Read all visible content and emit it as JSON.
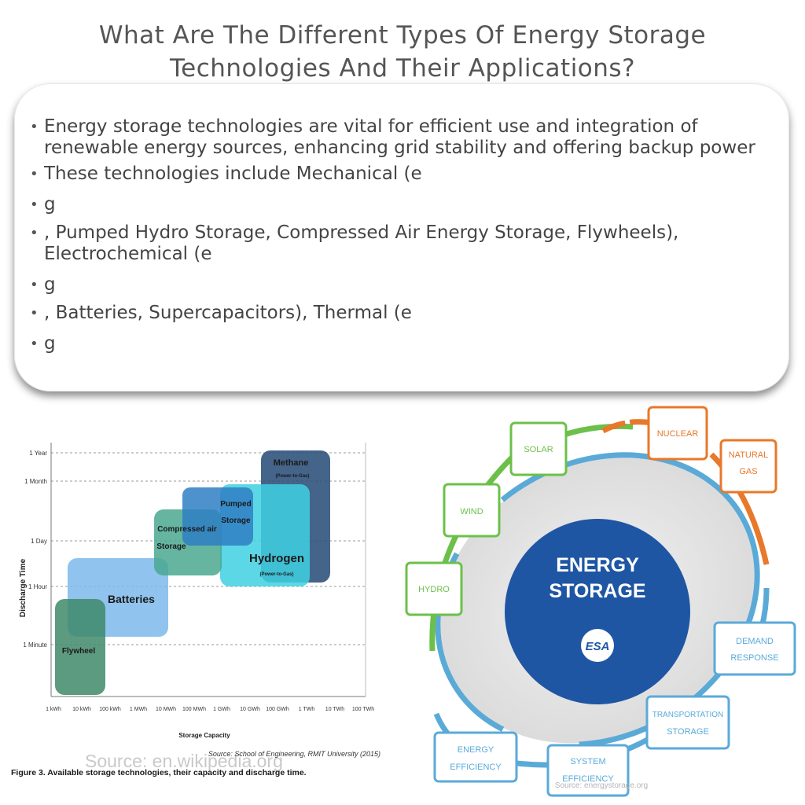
{
  "page": {
    "title": "What Are The Different Types Of Energy Storage Technologies And Their Applications?",
    "bullets": [
      "Energy storage technologies are vital for efficient use and integration of renewable energy sources, enhancing grid stability and offering backup power",
      "These technologies include Mechanical (e",
      "g",
      ", Pumped Hydro Storage, Compressed Air Energy Storage, Flywheels), Electrochemical (e",
      "g",
      ", Batteries, Supercapacitors), Thermal (e",
      "g"
    ]
  },
  "left_figure": {
    "y_axis_label": "Discharge Time",
    "x_axis_label": "Storage Capacity",
    "y_ticks": [
      "1 Year",
      "1 Month",
      "1 Day",
      "1 Hour",
      "1 Minute"
    ],
    "x_ticks": [
      "1 kWh",
      "10 kWh",
      "100 kWh",
      "1 MWh",
      "10 MWh",
      "100 MWh",
      "1 GWh",
      "10 GWh",
      "100 GWh",
      "1 TWh",
      "10 TWh",
      "100 TWh"
    ],
    "technologies": [
      {
        "label": "Flywheel",
        "color": "#3f8a6a"
      },
      {
        "label": "Batteries",
        "color": "#7cb8ea"
      },
      {
        "label": "Compressed air Storage",
        "color": "#4aa890"
      },
      {
        "label": "Pumped Storage",
        "color": "#2f7fc4"
      },
      {
        "label": "Hydrogen",
        "sublabel": "(Power-to-Gas)",
        "color": "#3fd0e0"
      },
      {
        "label": "Methane",
        "sublabel": "(Power-to-Gas)",
        "color": "#2b4f7a"
      }
    ],
    "source": "Source: School of Engineering, RMIT University (2015)",
    "caption": "Figure 3. Available storage technologies, their capacity and discharge time.",
    "watermark": "Source: en.wikipedia.org"
  },
  "right_figure": {
    "center_line1": "ENERGY",
    "center_line2": "STORAGE",
    "logo_text": "ESA",
    "colors": {
      "green": "#6cc04a",
      "orange": "#e8782a",
      "blue": "#5aaad8",
      "navy": "#1f56a3"
    },
    "nodes": [
      {
        "label1": "SOLAR",
        "label2": "",
        "color": "#6cc04a"
      },
      {
        "label1": "NUCLEAR",
        "label2": "",
        "color": "#e8782a"
      },
      {
        "label1": "NATURAL",
        "label2": "GAS",
        "color": "#e8782a"
      },
      {
        "label1": "WIND",
        "label2": "",
        "color": "#6cc04a"
      },
      {
        "label1": "HYDRO",
        "label2": "",
        "color": "#6cc04a"
      },
      {
        "label1": "DEMAND",
        "label2": "RESPONSE",
        "color": "#5aaad8"
      },
      {
        "label1": "TRANSPORTATION",
        "label2": "STORAGE",
        "color": "#5aaad8"
      },
      {
        "label1": "ENERGY",
        "label2": "EFFICIENCY",
        "color": "#5aaad8"
      },
      {
        "label1": "SYSTEM",
        "label2": "EFFICIENCY",
        "color": "#5aaad8"
      }
    ],
    "watermark": "Source: energystorage.org"
  }
}
